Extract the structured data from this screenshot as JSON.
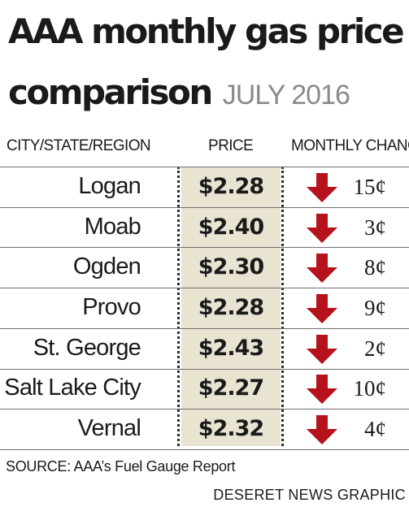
{
  "chart_data": {
    "type": "table",
    "title_line1": "AAA monthly gas price",
    "title_line2": "comparison",
    "subtitle": "JULY 2016",
    "columns": [
      "CITY/STATE/REGION",
      "PRICE",
      "MONTHLY CHANGE"
    ],
    "rows": [
      {
        "city": "Logan",
        "price": "$2.28",
        "change": "15¢",
        "direction": "down"
      },
      {
        "city": "Moab",
        "price": "$2.40",
        "change": "3¢",
        "direction": "down"
      },
      {
        "city": "Ogden",
        "price": "$2.30",
        "change": "8¢",
        "direction": "down"
      },
      {
        "city": "Provo",
        "price": "$2.28",
        "change": "9¢",
        "direction": "down"
      },
      {
        "city": "St. George",
        "price": "$2.43",
        "change": "2¢",
        "direction": "down"
      },
      {
        "city": "Salt Lake City",
        "price": "$2.27",
        "change": "10¢",
        "direction": "down"
      },
      {
        "city": "Vernal",
        "price": "$2.32",
        "change": "4¢",
        "direction": "down"
      }
    ],
    "source": "SOURCE: AAA’s Fuel Gauge Report",
    "credit": "DESERET NEWS GRAPHIC"
  },
  "colors": {
    "arrow": "#b5121b",
    "price_band": "#e9e4d2",
    "subtitle": "#8a8a8a",
    "text": "#1a1a1a"
  },
  "icons": {
    "change_indicator": "down-arrow-icon"
  }
}
